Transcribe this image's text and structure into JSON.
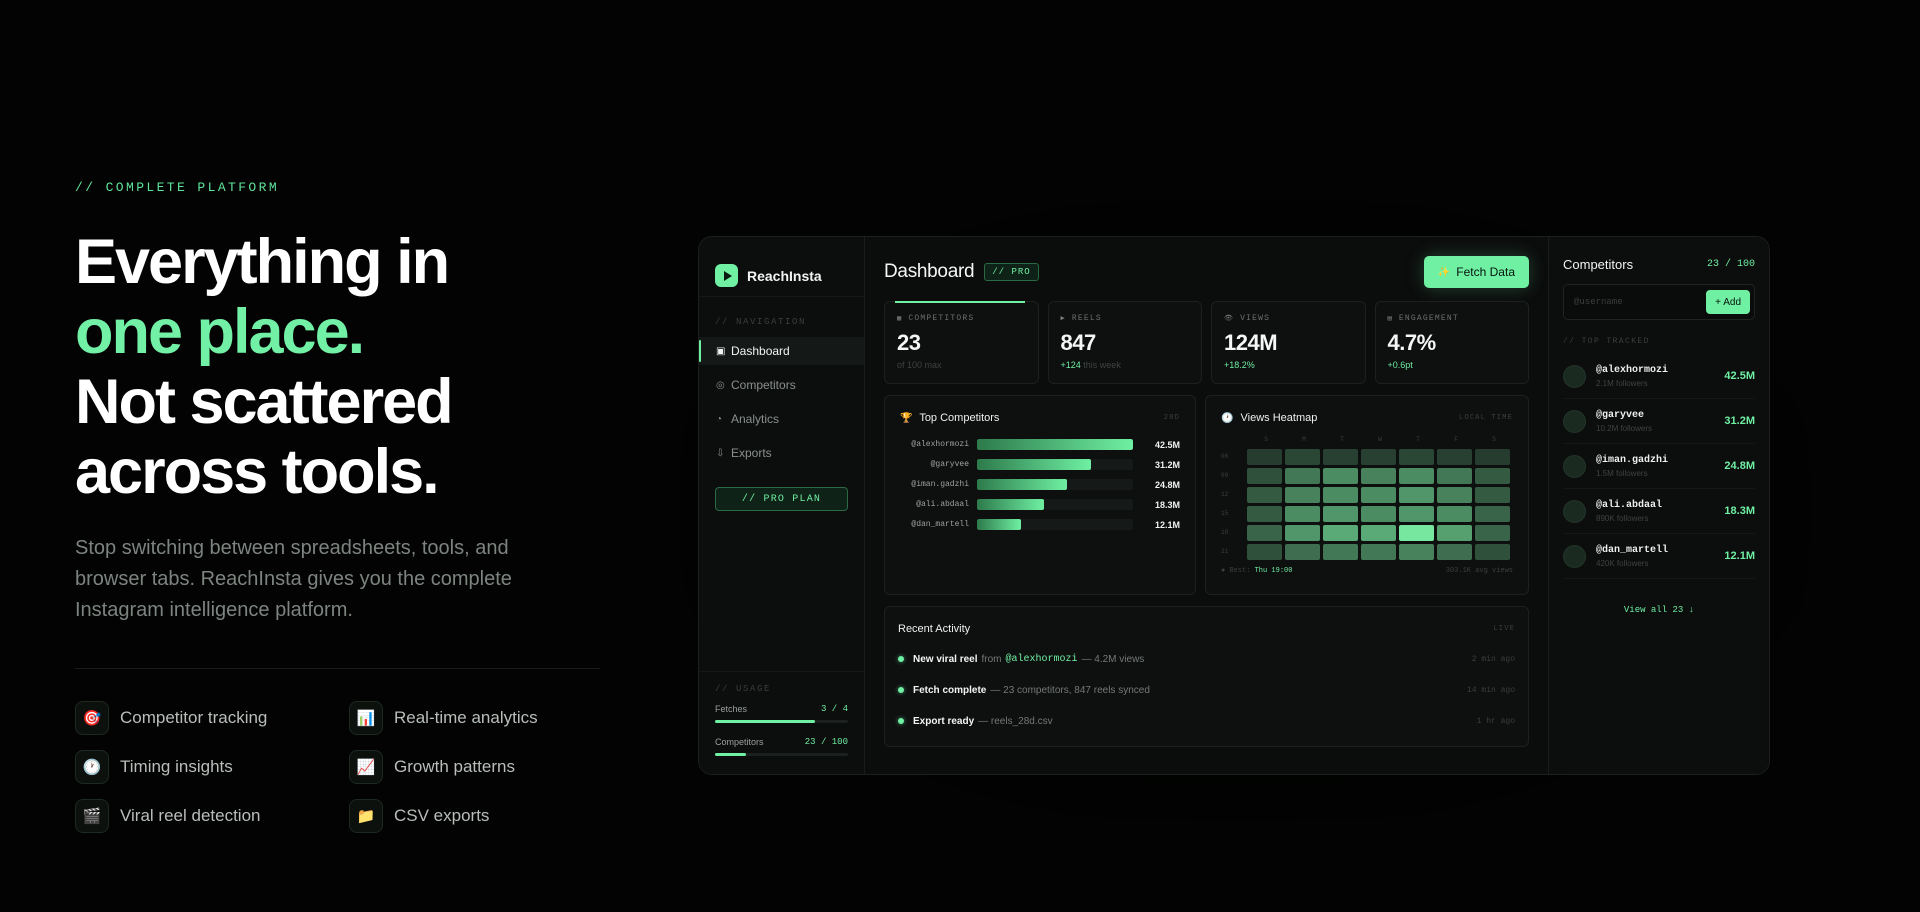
{
  "hero": {
    "eyebrow": "// COMPLETE PLATFORM",
    "headline_1": "Everything in",
    "headline_2": "one place.",
    "headline_3": "Not scattered",
    "headline_4": "across tools.",
    "description": "Stop switching between spreadsheets, tools, and browser tabs. ReachInsta gives you the complete Instagram intelligence platform.",
    "features": [
      {
        "icon": "target-icon",
        "glyph": "🎯",
        "label": "Competitor tracking"
      },
      {
        "icon": "bar-chart-icon",
        "glyph": "📊",
        "label": "Real-time analytics"
      },
      {
        "icon": "clock-icon",
        "glyph": "🕐",
        "label": "Timing insights"
      },
      {
        "icon": "trend-icon",
        "glyph": "📈",
        "label": "Growth patterns"
      },
      {
        "icon": "clapper-icon",
        "glyph": "🎬",
        "label": "Viral reel detection"
      },
      {
        "icon": "folder-icon",
        "glyph": "📁",
        "label": "CSV exports"
      }
    ]
  },
  "app": {
    "brand": "ReachInsta",
    "nav_title": "// NAVIGATION",
    "nav": [
      {
        "glyph": "▣",
        "label": "Dashboard",
        "active": true
      },
      {
        "glyph": "◎",
        "label": "Competitors",
        "active": false
      },
      {
        "glyph": "◔",
        "label": "Analytics",
        "active": false
      },
      {
        "glyph": "⇩",
        "label": "Exports",
        "active": false
      }
    ],
    "pro_plan": "// PRO PLAN",
    "usage": {
      "title": "// USAGE",
      "fetches_label": "Fetches",
      "fetches_value": "3 / 4",
      "fetches_fraction": 0.75,
      "competitors_label": "Competitors",
      "competitors_value": "23 / 100",
      "competitors_fraction": 0.23
    },
    "main": {
      "title": "Dashboard",
      "badge": "// PRO",
      "fetch_button": "Fetch Data",
      "stats": [
        {
          "glyph": "▦",
          "label": "COMPETITORS",
          "value": "23",
          "delta": "",
          "sub": "of 100 max"
        },
        {
          "glyph": "▶",
          "label": "REELS",
          "value": "847",
          "delta": "+124",
          "sub": "this week"
        },
        {
          "glyph": "👁",
          "label": "VIEWS",
          "value": "124M",
          "delta": "+18.2%",
          "sub": ""
        },
        {
          "glyph": "▤",
          "label": "ENGAGEMENT",
          "value": "4.7%",
          "delta": "+0.6pt",
          "sub": ""
        }
      ],
      "top_competitors": {
        "title": "Top Competitors",
        "glyph": "🏆",
        "tag": "28D",
        "rows": [
          {
            "name": "@alexhormozi",
            "value": "42.5M",
            "fraction": 1.0
          },
          {
            "name": "@garyvee",
            "value": "31.2M",
            "fraction": 0.73
          },
          {
            "name": "@iman.gadzhi",
            "value": "24.8M",
            "fraction": 0.58
          },
          {
            "name": "@ali.abdaal",
            "value": "18.3M",
            "fraction": 0.43
          },
          {
            "name": "@dan_martell",
            "value": "12.1M",
            "fraction": 0.28
          }
        ]
      },
      "heatmap": {
        "title": "Views Heatmap",
        "glyph": "🕐",
        "tag": "LOCAL TIME",
        "days": [
          "S",
          "M",
          "T",
          "W",
          "T",
          "F",
          "S"
        ],
        "hours": [
          "06",
          "09",
          "12",
          "15",
          "18",
          "21"
        ],
        "intensity": [
          [
            0.1,
            0.15,
            0.12,
            0.12,
            0.15,
            0.12,
            0.1
          ],
          [
            0.2,
            0.4,
            0.5,
            0.45,
            0.5,
            0.4,
            0.25
          ],
          [
            0.25,
            0.45,
            0.5,
            0.5,
            0.55,
            0.45,
            0.25
          ],
          [
            0.25,
            0.5,
            0.55,
            0.5,
            0.55,
            0.5,
            0.3
          ],
          [
            0.3,
            0.55,
            0.65,
            0.65,
            0.95,
            0.6,
            0.3
          ],
          [
            0.2,
            0.35,
            0.4,
            0.4,
            0.45,
            0.35,
            0.2
          ]
        ],
        "best_label": "● Best:",
        "best_value": "Thu 19:00",
        "avg": "303.1K avg views"
      },
      "activity": {
        "title": "Recent Activity",
        "tag": "LIVE",
        "items": [
          {
            "strong": "New viral reel",
            "pre": "from",
            "user": "@alexhormozi",
            "rest": "— 4.2M views",
            "time": "2 min ago"
          },
          {
            "strong": "Fetch complete",
            "pre": "",
            "user": "",
            "rest": "— 23 competitors, 847 reels synced",
            "time": "14 min ago"
          },
          {
            "strong": "Export ready",
            "pre": "",
            "user": "",
            "rest": "— reels_28d.csv",
            "time": "1 hr ago"
          }
        ]
      }
    },
    "right": {
      "title": "Competitors",
      "count": "23 / 100",
      "input_placeholder": "@username",
      "add_button": "+ Add",
      "section": "// TOP TRACKED",
      "items": [
        {
          "handle": "@alexhormozi",
          "followers": "2.1M followers",
          "views": "42.5M"
        },
        {
          "handle": "@garyvee",
          "followers": "10.2M followers",
          "views": "31.2M"
        },
        {
          "handle": "@iman.gadzhi",
          "followers": "1.5M followers",
          "views": "24.8M"
        },
        {
          "handle": "@ali.abdaal",
          "followers": "890K followers",
          "views": "18.3M"
        },
        {
          "handle": "@dan_martell",
          "followers": "420K followers",
          "views": "12.1M"
        }
      ],
      "view_all": "View all 23 ↓"
    }
  }
}
